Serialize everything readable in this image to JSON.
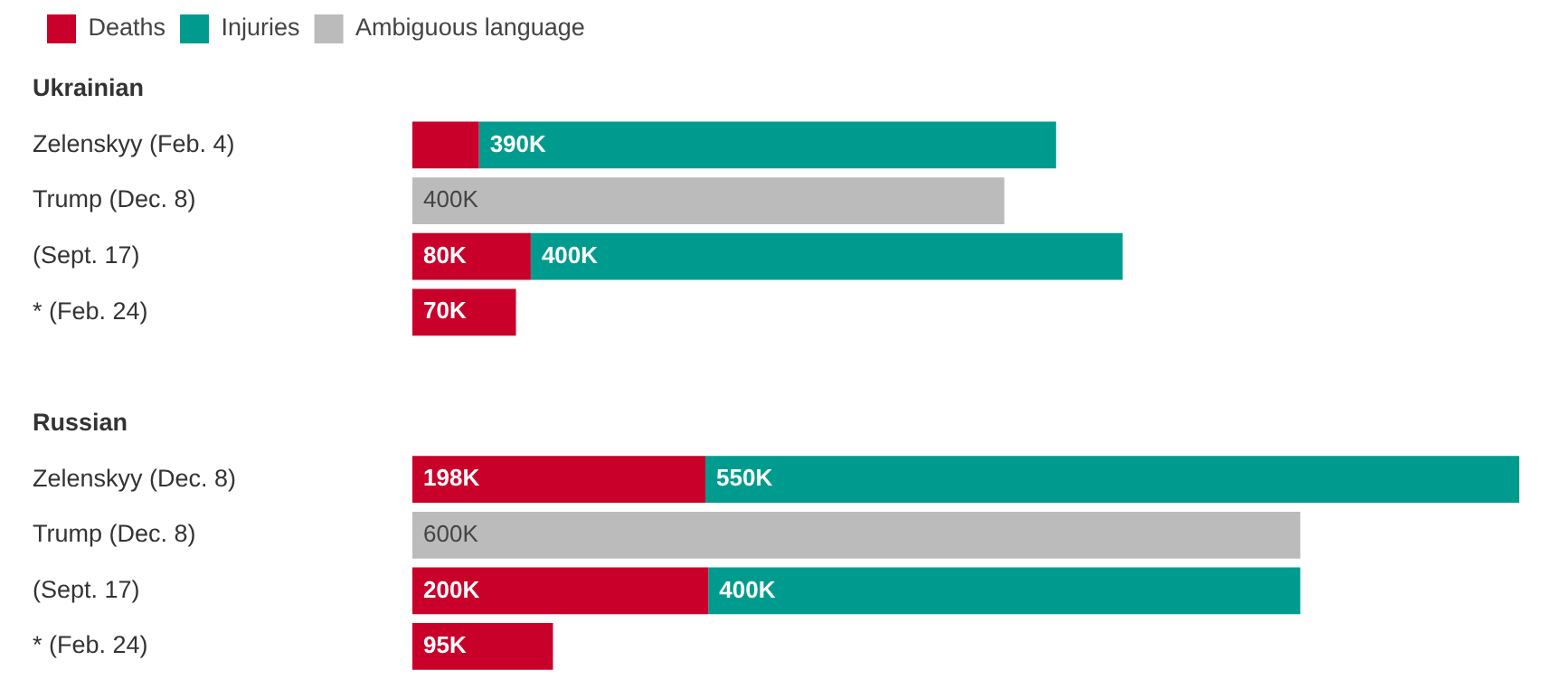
{
  "chart_data": {
    "type": "bar",
    "orientation": "horizontal",
    "stacked": true,
    "categories": [
      "Ukrainian",
      "Zelenskyy (Feb. 4)",
      "Trump (Dec. 8)",
      "(Sept. 17)",
      "* (Feb. 24)",
      null,
      "Russian",
      "Zelenskyy (Dec. 8)",
      "Trump (Dec. 8)",
      "(Sept. 17)",
      "* (Feb. 24)"
    ],
    "series": [
      {
        "name": "Deaths",
        "color": "#c8002a",
        "values": [
          null,
          45,
          null,
          80,
          70,
          null,
          null,
          198,
          null,
          200,
          95
        ],
        "value_labels": [
          null,
          null,
          null,
          "80K",
          "70K",
          null,
          null,
          "198K",
          null,
          "200K",
          "95K"
        ]
      },
      {
        "name": "Injuries",
        "color": "#009b8f",
        "values": [
          null,
          390,
          null,
          400,
          null,
          null,
          null,
          550,
          null,
          400,
          null
        ],
        "value_labels": [
          null,
          "390K",
          null,
          "400K",
          null,
          null,
          null,
          "550K",
          null,
          "400K",
          null
        ]
      },
      {
        "name": "Ambiguous language",
        "color": "#bbbbbb",
        "values": [
          null,
          null,
          400,
          null,
          null,
          null,
          null,
          null,
          600,
          null,
          null
        ],
        "value_labels": [
          null,
          null,
          "400K",
          null,
          null,
          null,
          null,
          null,
          "600K",
          null,
          null
        ]
      }
    ],
    "xlim": [
      0,
      748
    ],
    "tick_labels": "y",
    "grid": false,
    "legend": "top left"
  }
}
